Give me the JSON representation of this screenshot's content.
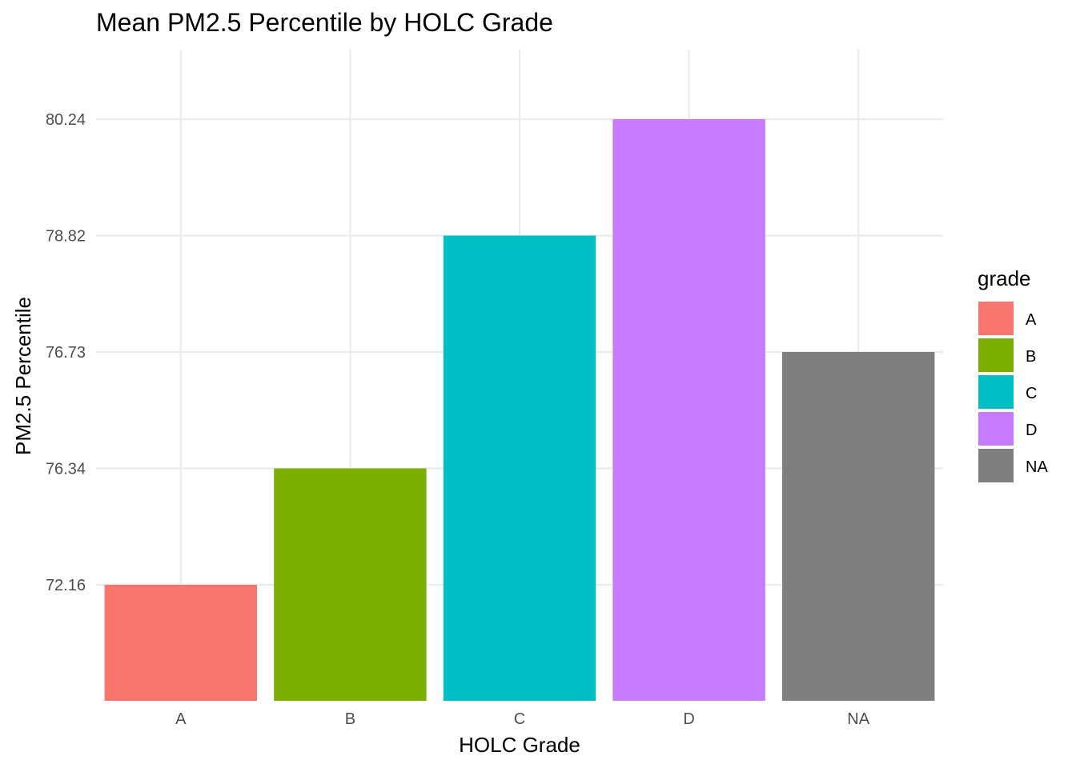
{
  "chart_data": {
    "type": "bar",
    "title": "Mean PM2.5 Percentile by HOLC Grade",
    "xlabel": "HOLC Grade",
    "ylabel": "PM2.5 Percentile",
    "categories": [
      "A",
      "B",
      "C",
      "D",
      "NA"
    ],
    "values": [
      72.16,
      76.34,
      78.82,
      80.24,
      76.73
    ],
    "y_tick_labels": [
      "72.16",
      "76.34",
      "76.73",
      "78.82",
      "80.24"
    ],
    "y_scale_note": "y-axis uses discrete, unevenly-valued breaks; ticks drawn at equal spacing",
    "colors": [
      "#F8766D",
      "#7CAE00",
      "#00BFC4",
      "#C77CFF",
      "#7F7F7F"
    ],
    "legend": {
      "title": "grade",
      "placement": "right",
      "entries": [
        "A",
        "B",
        "C",
        "D",
        "NA"
      ]
    },
    "grid": true
  }
}
